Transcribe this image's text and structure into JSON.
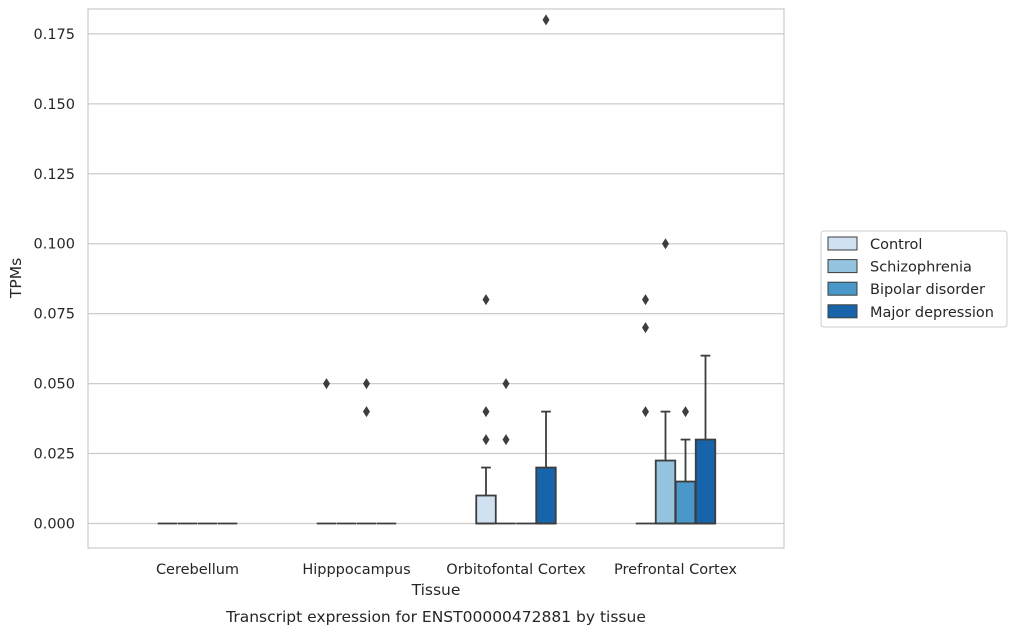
{
  "chart_data": {
    "type": "box",
    "xlabel": "Tissue",
    "ylabel": "TPMs",
    "caption": "Transcript expression for ENST00000472881 by tissue",
    "ylim": [
      -0.009,
      0.191
    ],
    "yticks": [
      0.0,
      0.025,
      0.05,
      0.075,
      0.1,
      0.125,
      0.15,
      0.175
    ],
    "ytick_labels": [
      "0.000",
      "0.025",
      "0.050",
      "0.075",
      "0.100",
      "0.125",
      "0.150",
      "0.175"
    ],
    "grid": "horizontal",
    "legend_position": "right",
    "categories": [
      "Cerebellum",
      "Hipppocampus",
      "Orbitofontal Cortex",
      "Prefrontal Cortex"
    ],
    "series": [
      {
        "name": "Control",
        "color": "#d0e1f2",
        "boxes": [
          {
            "q1": 0,
            "median": 0,
            "q3": 0,
            "whisker_low": 0,
            "whisker_high": 0,
            "outliers": []
          },
          {
            "q1": 0,
            "median": 0,
            "q3": 0,
            "whisker_low": 0,
            "whisker_high": 0,
            "outliers": [
              0.05
            ]
          },
          {
            "q1": 0,
            "median": 0,
            "q3": 0.01,
            "whisker_low": 0,
            "whisker_high": 0.02,
            "outliers": [
              0.03,
              0.04,
              0.08
            ]
          },
          {
            "q1": 0,
            "median": 0,
            "q3": 0,
            "whisker_low": 0,
            "whisker_high": 0,
            "outliers": [
              0.04,
              0.07,
              0.08
            ]
          }
        ]
      },
      {
        "name": "Schizophrenia",
        "color": "#94c4df",
        "boxes": [
          {
            "q1": 0,
            "median": 0,
            "q3": 0,
            "whisker_low": 0,
            "whisker_high": 0,
            "outliers": []
          },
          {
            "q1": 0,
            "median": 0,
            "q3": 0,
            "whisker_low": 0,
            "whisker_high": 0,
            "outliers": []
          },
          {
            "q1": 0,
            "median": 0,
            "q3": 0,
            "whisker_low": 0,
            "whisker_high": 0,
            "outliers": [
              0.03,
              0.05
            ]
          },
          {
            "q1": 0,
            "median": 0,
            "q3": 0.0225,
            "whisker_low": 0,
            "whisker_high": 0.04,
            "outliers": [
              0.1
            ]
          }
        ]
      },
      {
        "name": "Bipolar disorder",
        "color": "#4a98c9",
        "boxes": [
          {
            "q1": 0,
            "median": 0,
            "q3": 0,
            "whisker_low": 0,
            "whisker_high": 0,
            "outliers": []
          },
          {
            "q1": 0,
            "median": 0,
            "q3": 0,
            "whisker_low": 0,
            "whisker_high": 0,
            "outliers": [
              0.04,
              0.05
            ]
          },
          {
            "q1": 0,
            "median": 0,
            "q3": 0,
            "whisker_low": 0,
            "whisker_high": 0,
            "outliers": []
          },
          {
            "q1": 0,
            "median": 0,
            "q3": 0.015,
            "whisker_low": 0,
            "whisker_high": 0.03,
            "outliers": [
              0.04
            ]
          }
        ]
      },
      {
        "name": "Major depression",
        "color": "#1764ab",
        "boxes": [
          {
            "q1": 0,
            "median": 0,
            "q3": 0,
            "whisker_low": 0,
            "whisker_high": 0,
            "outliers": []
          },
          {
            "q1": 0,
            "median": 0,
            "q3": 0,
            "whisker_low": 0,
            "whisker_high": 0,
            "outliers": []
          },
          {
            "q1": 0,
            "median": 0,
            "q3": 0.02,
            "whisker_low": 0,
            "whisker_high": 0.04,
            "outliers": [
              0.18
            ]
          },
          {
            "q1": 0,
            "median": 0,
            "q3": 0.03,
            "whisker_low": 0,
            "whisker_high": 0.06,
            "outliers": []
          }
        ]
      }
    ]
  }
}
